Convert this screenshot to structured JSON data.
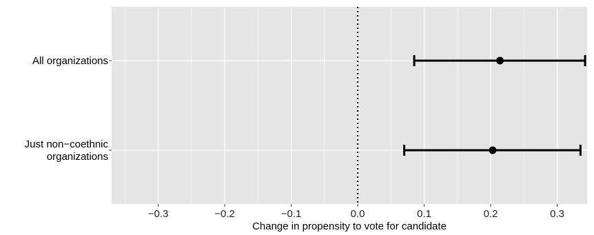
{
  "chart_data": {
    "type": "scatter",
    "subtype": "coefficient-plot-horizontal-error-bars",
    "title": "",
    "xlabel": "Change in propensity to vote for candidate",
    "ylabel": "",
    "xlim": [
      -0.37,
      0.345
    ],
    "xticks": [
      -0.3,
      -0.2,
      -0.1,
      0.0,
      0.1,
      0.2,
      0.3
    ],
    "xtick_labels": [
      "−0.3",
      "−0.2",
      "−0.1",
      "0.0",
      "0.1",
      "0.2",
      "0.3"
    ],
    "categories": [
      [
        "All organizations"
      ],
      [
        "Just non−coethnic",
        "organizations"
      ]
    ],
    "points": [
      {
        "estimate": 0.214,
        "lower": 0.085,
        "upper": 0.342
      },
      {
        "estimate": 0.203,
        "lower": 0.07,
        "upper": 0.335
      }
    ],
    "reference_line": {
      "x": 0.0,
      "style": "dotted"
    },
    "grid": true,
    "legend": "none",
    "colors": {
      "panel_background": "#e5e5e5",
      "grid": "#ffffff",
      "marks": "#000000",
      "tick_text": "#222222"
    }
  }
}
